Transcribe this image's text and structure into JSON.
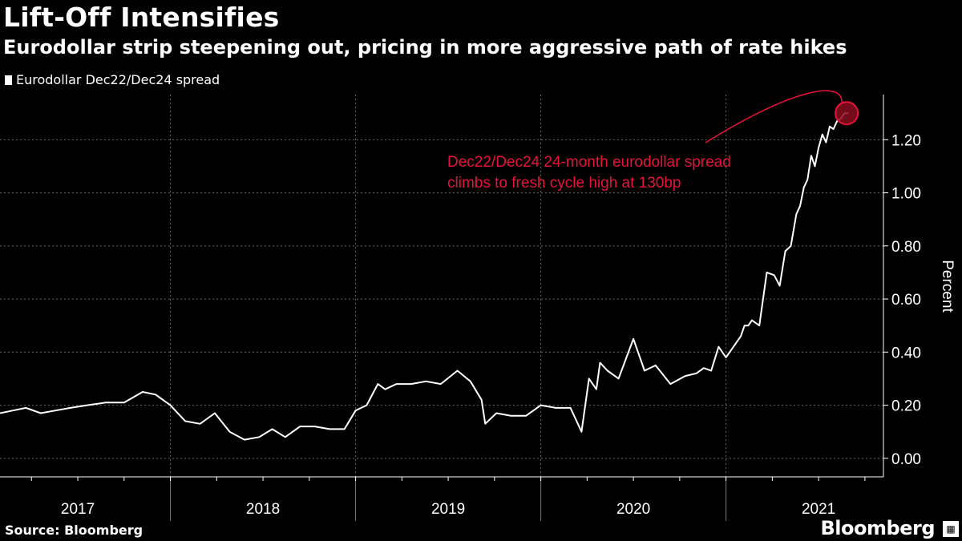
{
  "title": "Lift-Off Intensifies",
  "subtitle": "Eurodollar strip steepening out, pricing in more aggressive path of rate hikes",
  "legend": {
    "label": "Eurodollar Dec22/Dec24 spread",
    "color": "#ffffff"
  },
  "source": "Source: Bloomberg",
  "brand": "Bloomberg",
  "annotation": {
    "line1": "Dec22/Dec24 24-month eurodollar spread",
    "line2": "climbs to fresh cycle high at 130bp",
    "color": "#e8113b",
    "value": 1.3
  },
  "chart_data": {
    "type": "line",
    "title": "Lift-Off Intensifies",
    "subtitle": "Eurodollar strip steepening out, pricing in more aggressive path of rate hikes",
    "ylabel": "Percent",
    "xlabel": "",
    "ylim": [
      -0.07,
      1.37
    ],
    "xlim": [
      2016.58,
      2021.35
    ],
    "yticks": [
      0.0,
      0.2,
      0.4,
      0.6,
      0.8,
      1.0,
      1.2
    ],
    "ytick_labels": [
      "0.00",
      "0.20",
      "0.40",
      "0.60",
      "0.80",
      "1.00",
      "1.20"
    ],
    "year_labels": [
      {
        "label": "2017",
        "x": 2017.0
      },
      {
        "label": "2018",
        "x": 2018.0
      },
      {
        "label": "2019",
        "x": 2019.0
      },
      {
        "label": "2020",
        "x": 2020.0
      },
      {
        "label": "2021",
        "x": 2021.0
      }
    ],
    "year_boundaries": [
      2017.5,
      2018.5,
      2019.5,
      2020.5
    ],
    "grid": true,
    "series": [
      {
        "name": "Eurodollar Dec22/Dec24 spread",
        "color": "#ffffff",
        "x": [
          2016.58,
          2016.65,
          2016.72,
          2016.8,
          2016.88,
          2016.96,
          2017.05,
          2017.15,
          2017.25,
          2017.35,
          2017.42,
          2017.5,
          2017.58,
          2017.66,
          2017.74,
          2017.82,
          2017.9,
          2017.98,
          2018.05,
          2018.12,
          2018.2,
          2018.28,
          2018.36,
          2018.44,
          2018.5,
          2018.56,
          2018.62,
          2018.66,
          2018.72,
          2018.8,
          2018.88,
          2018.96,
          2019.05,
          2019.12,
          2019.18,
          2019.2,
          2019.26,
          2019.34,
          2019.42,
          2019.5,
          2019.58,
          2019.66,
          2019.72,
          2019.76,
          2019.8,
          2019.82,
          2019.86,
          2019.92,
          2020.0,
          2020.06,
          2020.12,
          2020.2,
          2020.28,
          2020.34,
          2020.38,
          2020.42,
          2020.46,
          2020.5,
          2020.54,
          2020.58,
          2020.6,
          2020.62,
          2020.64,
          2020.68,
          2020.72,
          2020.76,
          2020.79,
          2020.82,
          2020.85,
          2020.88,
          2020.9,
          2020.92,
          2020.94,
          2020.96,
          2020.98,
          2021.0,
          2021.02,
          2021.04,
          2021.06,
          2021.08,
          2021.1,
          2021.12,
          2021.14,
          2021.16
        ],
        "values": [
          0.17,
          0.18,
          0.19,
          0.17,
          0.18,
          0.19,
          0.2,
          0.21,
          0.21,
          0.25,
          0.24,
          0.2,
          0.14,
          0.13,
          0.17,
          0.1,
          0.07,
          0.08,
          0.11,
          0.08,
          0.12,
          0.12,
          0.11,
          0.11,
          0.18,
          0.2,
          0.28,
          0.26,
          0.28,
          0.28,
          0.29,
          0.28,
          0.33,
          0.29,
          0.22,
          0.13,
          0.17,
          0.16,
          0.16,
          0.2,
          0.19,
          0.19,
          0.1,
          0.3,
          0.26,
          0.36,
          0.33,
          0.3,
          0.45,
          0.33,
          0.35,
          0.28,
          0.31,
          0.32,
          0.34,
          0.33,
          0.42,
          0.38,
          0.42,
          0.46,
          0.5,
          0.5,
          0.52,
          0.5,
          0.7,
          0.69,
          0.65,
          0.78,
          0.8,
          0.92,
          0.95,
          1.02,
          1.05,
          1.14,
          1.1,
          1.17,
          1.22,
          1.19,
          1.25,
          1.24,
          1.27,
          1.28,
          1.3,
          1.3
        ]
      }
    ]
  }
}
